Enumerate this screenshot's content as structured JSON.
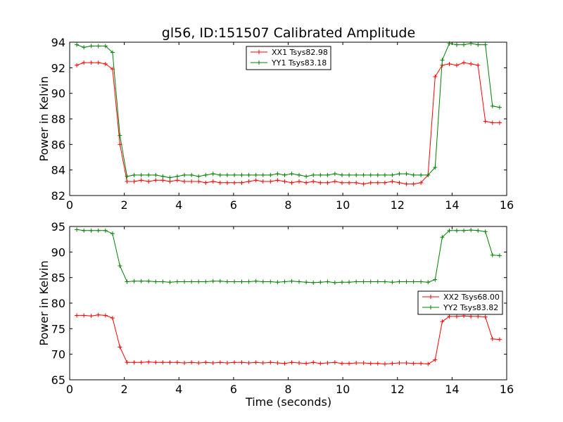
{
  "chart_data": [
    {
      "type": "line",
      "title": "gl56, ID:151507 Calibrated Amplitude",
      "xlabel": "",
      "ylabel": "Power in Kelvin",
      "xlim": [
        0,
        16
      ],
      "ylim": [
        82,
        94
      ],
      "xticks": [
        0,
        2,
        4,
        6,
        8,
        10,
        12,
        14,
        16
      ],
      "yticks": [
        82,
        84,
        86,
        88,
        90,
        92,
        94
      ],
      "legend_position": "top-center",
      "series": [
        {
          "name": "XX1 Tsys82.98",
          "color": "#ff0000",
          "x": [
            0.26,
            0.52,
            0.79,
            1.05,
            1.31,
            1.57,
            1.84,
            2.1,
            2.36,
            2.62,
            2.89,
            3.15,
            3.41,
            3.67,
            3.94,
            4.2,
            4.46,
            4.72,
            4.98,
            5.25,
            5.51,
            5.77,
            6.03,
            6.3,
            6.56,
            6.82,
            7.08,
            7.35,
            7.61,
            7.87,
            8.13,
            8.4,
            8.66,
            8.92,
            9.18,
            9.44,
            9.71,
            9.97,
            10.23,
            10.49,
            10.76,
            11.02,
            11.28,
            11.54,
            11.81,
            12.07,
            12.33,
            12.59,
            12.86,
            13.12,
            13.38,
            13.64,
            13.9,
            14.17,
            14.43,
            14.69,
            14.95,
            15.22,
            15.48,
            15.74
          ],
          "y": [
            92.2,
            92.4,
            92.4,
            92.4,
            92.3,
            91.9,
            86.0,
            83.1,
            83.1,
            83.2,
            83.1,
            83.2,
            83.2,
            83.1,
            83.2,
            83.1,
            83.1,
            83.1,
            83.0,
            83.1,
            83.0,
            83.0,
            83.0,
            83.0,
            83.1,
            83.2,
            83.1,
            83.1,
            83.2,
            83.1,
            83.0,
            83.1,
            83.0,
            83.1,
            83.0,
            83.0,
            83.1,
            83.0,
            83.0,
            83.0,
            82.9,
            83.0,
            83.0,
            83.0,
            83.1,
            83.0,
            82.9,
            82.9,
            83.0,
            83.6,
            91.3,
            92.2,
            92.3,
            92.2,
            92.4,
            92.3,
            92.2,
            87.8,
            87.7,
            87.7
          ]
        },
        {
          "name": "YY1 Tsys83.18",
          "color": "#008000",
          "x": [
            0.26,
            0.52,
            0.79,
            1.05,
            1.31,
            1.57,
            1.84,
            2.1,
            2.36,
            2.62,
            2.89,
            3.15,
            3.41,
            3.67,
            3.94,
            4.2,
            4.46,
            4.72,
            4.98,
            5.25,
            5.51,
            5.77,
            6.03,
            6.3,
            6.56,
            6.82,
            7.08,
            7.35,
            7.61,
            7.87,
            8.13,
            8.4,
            8.66,
            8.92,
            9.18,
            9.44,
            9.71,
            9.97,
            10.23,
            10.49,
            10.76,
            11.02,
            11.28,
            11.54,
            11.81,
            12.07,
            12.33,
            12.59,
            12.86,
            13.12,
            13.38,
            13.64,
            13.9,
            14.17,
            14.43,
            14.69,
            14.95,
            15.22,
            15.48,
            15.74
          ],
          "y": [
            93.8,
            93.6,
            93.7,
            93.7,
            93.7,
            93.2,
            86.7,
            83.5,
            83.6,
            83.6,
            83.6,
            83.6,
            83.5,
            83.4,
            83.5,
            83.6,
            83.6,
            83.5,
            83.6,
            83.7,
            83.6,
            83.6,
            83.6,
            83.6,
            83.6,
            83.6,
            83.6,
            83.6,
            83.7,
            83.6,
            83.7,
            83.6,
            83.5,
            83.6,
            83.6,
            83.6,
            83.7,
            83.6,
            83.6,
            83.6,
            83.6,
            83.6,
            83.6,
            83.6,
            83.6,
            83.7,
            83.7,
            83.6,
            83.6,
            83.6,
            84.2,
            92.6,
            93.9,
            93.8,
            93.8,
            93.9,
            93.8,
            93.8,
            89.0,
            88.9
          ]
        }
      ]
    },
    {
      "type": "line",
      "title": "",
      "xlabel": "Time (seconds)",
      "ylabel": "Power in Kelvin",
      "xlim": [
        0,
        16
      ],
      "ylim": [
        65,
        95
      ],
      "xticks": [
        0,
        2,
        4,
        6,
        8,
        10,
        12,
        14,
        16
      ],
      "yticks": [
        65,
        70,
        75,
        80,
        85,
        90,
        95
      ],
      "legend_position": "center-right",
      "series": [
        {
          "name": "XX2 Tsys68.00",
          "color": "#ff0000",
          "x": [
            0.26,
            0.52,
            0.79,
            1.05,
            1.31,
            1.57,
            1.84,
            2.1,
            2.36,
            2.62,
            2.89,
            3.15,
            3.41,
            3.67,
            3.94,
            4.2,
            4.46,
            4.72,
            4.98,
            5.25,
            5.51,
            5.77,
            6.03,
            6.3,
            6.56,
            6.82,
            7.08,
            7.35,
            7.61,
            7.87,
            8.13,
            8.4,
            8.66,
            8.92,
            9.18,
            9.44,
            9.71,
            9.97,
            10.23,
            10.49,
            10.76,
            11.02,
            11.28,
            11.54,
            11.81,
            12.07,
            12.33,
            12.59,
            12.86,
            13.12,
            13.38,
            13.64,
            13.9,
            14.17,
            14.43,
            14.69,
            14.95,
            15.22,
            15.48,
            15.74
          ],
          "y": [
            77.6,
            77.6,
            77.5,
            77.7,
            77.6,
            77.1,
            71.4,
            68.4,
            68.4,
            68.4,
            68.5,
            68.4,
            68.4,
            68.4,
            68.4,
            68.3,
            68.4,
            68.3,
            68.4,
            68.3,
            68.4,
            68.3,
            68.4,
            68.4,
            68.3,
            68.4,
            68.3,
            68.4,
            68.3,
            68.2,
            68.4,
            68.3,
            68.2,
            68.4,
            68.2,
            68.3,
            68.4,
            68.2,
            68.2,
            68.3,
            68.3,
            68.2,
            68.2,
            68.1,
            68.2,
            68.3,
            68.3,
            68.2,
            68.2,
            68.1,
            68.9,
            76.4,
            77.4,
            77.4,
            77.5,
            77.4,
            77.4,
            77.3,
            73.0,
            72.9
          ]
        },
        {
          "name": "YY2 Tsys83.82",
          "color": "#008000",
          "x": [
            0.26,
            0.52,
            0.79,
            1.05,
            1.31,
            1.57,
            1.84,
            2.1,
            2.36,
            2.62,
            2.89,
            3.15,
            3.41,
            3.67,
            3.94,
            4.2,
            4.46,
            4.72,
            4.98,
            5.25,
            5.51,
            5.77,
            6.03,
            6.3,
            6.56,
            6.82,
            7.08,
            7.35,
            7.61,
            7.87,
            8.13,
            8.4,
            8.66,
            8.92,
            9.18,
            9.44,
            9.71,
            9.97,
            10.23,
            10.49,
            10.76,
            11.02,
            11.28,
            11.54,
            11.81,
            12.07,
            12.33,
            12.59,
            12.86,
            13.12,
            13.38,
            13.64,
            13.9,
            14.17,
            14.43,
            14.69,
            14.95,
            15.22,
            15.48,
            15.74
          ],
          "y": [
            94.4,
            94.2,
            94.2,
            94.2,
            94.2,
            93.6,
            87.3,
            84.2,
            84.3,
            84.3,
            84.3,
            84.2,
            84.2,
            84.1,
            84.2,
            84.2,
            84.2,
            84.2,
            84.2,
            84.3,
            84.3,
            84.2,
            84.2,
            84.2,
            84.2,
            84.3,
            84.2,
            84.2,
            84.1,
            84.2,
            84.3,
            84.2,
            84.1,
            84.0,
            84.1,
            84.2,
            84.0,
            84.1,
            84.1,
            84.2,
            84.2,
            84.2,
            84.2,
            84.2,
            84.1,
            84.2,
            84.2,
            84.2,
            84.2,
            84.1,
            84.6,
            92.9,
            94.2,
            94.2,
            94.2,
            94.3,
            94.2,
            94.0,
            89.4,
            89.3
          ]
        }
      ]
    }
  ]
}
